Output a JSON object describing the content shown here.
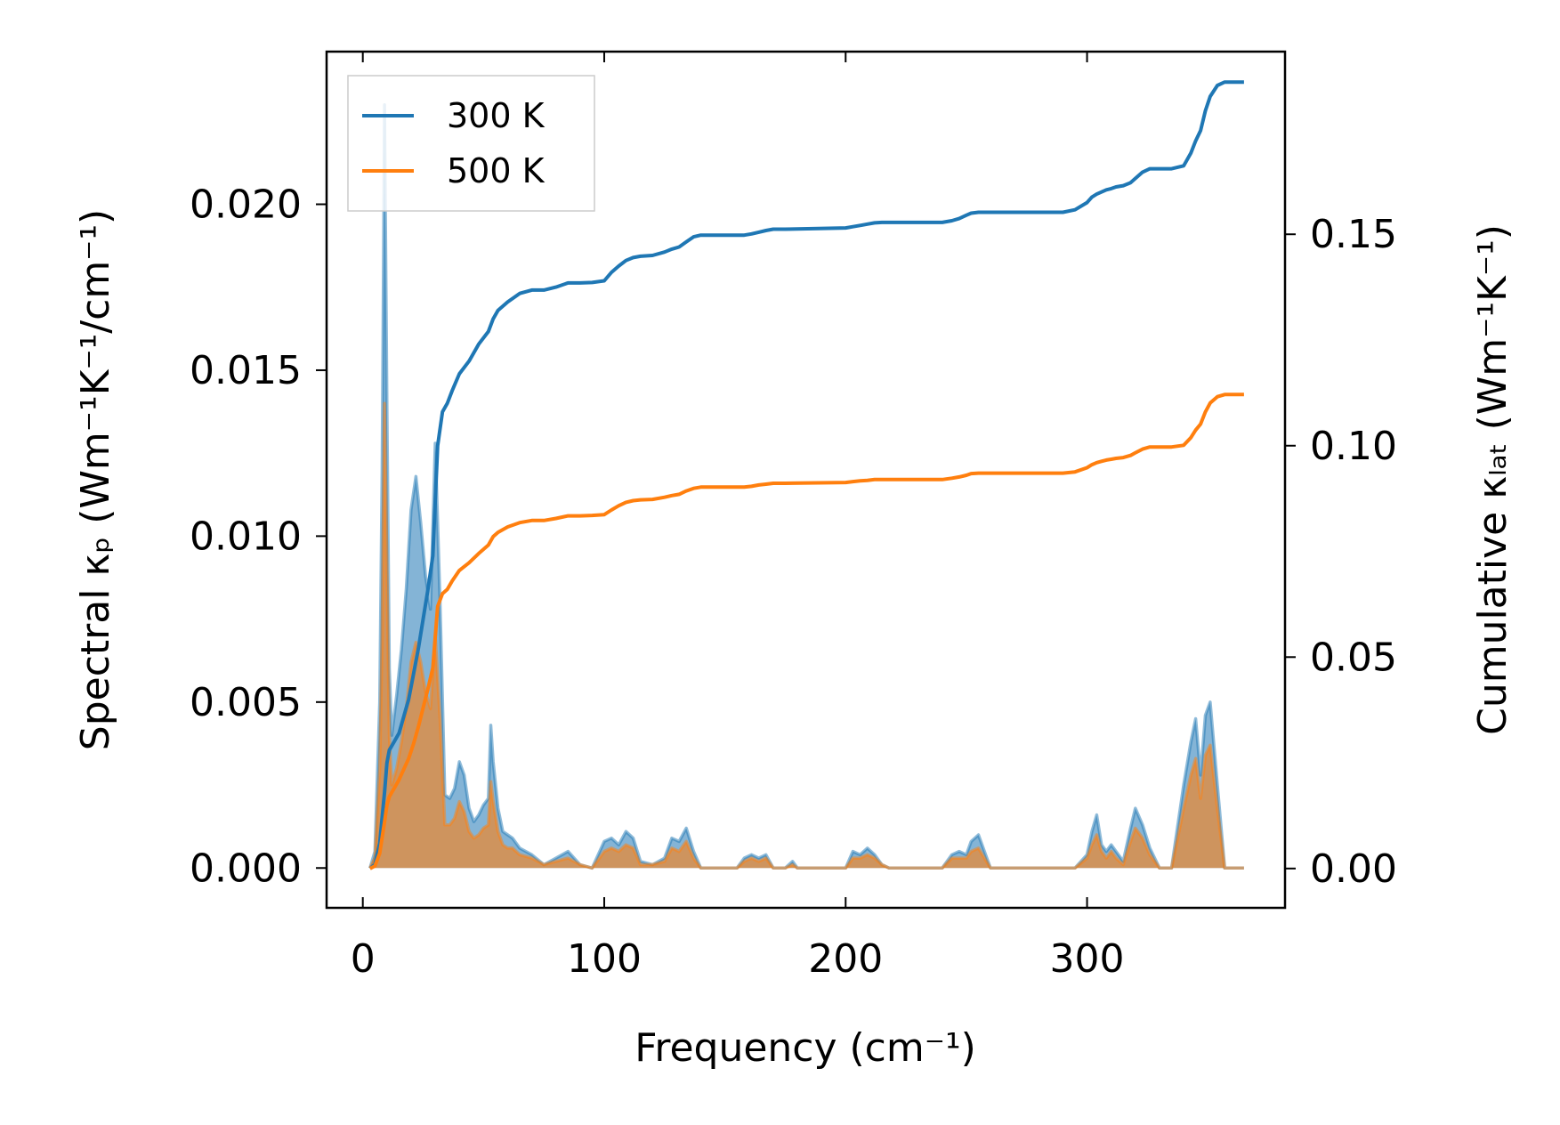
{
  "chart_data": {
    "type": "line",
    "xlabel": "Frequency (cm⁻¹)",
    "ylabel_left": "Spectral κₚ (Wm⁻¹K⁻¹/cm⁻¹)",
    "ylabel_right": "Cumulative κₗₐₜ (Wm⁻¹K⁻¹)",
    "xlim": [
      -15,
      382
    ],
    "ylim_left": [
      -0.0012,
      0.0246
    ],
    "ylim_right": [
      -0.0093,
      0.1932
    ],
    "xticks": [
      0,
      100,
      200,
      300
    ],
    "xtick_labels": [
      "0",
      "100",
      "200",
      "300"
    ],
    "yticks_left": [
      0.0,
      0.005,
      0.01,
      0.015,
      0.02
    ],
    "ytick_labels_left": [
      "0.000",
      "0.005",
      "0.010",
      "0.015",
      "0.020"
    ],
    "yticks_right": [
      0.0,
      0.05,
      0.1,
      0.15
    ],
    "ytick_labels_right": [
      "0.00",
      "0.05",
      "0.10",
      "0.15"
    ],
    "legend": {
      "placement": "top-left",
      "entries": [
        "300 K",
        "500 K"
      ]
    },
    "grid": false,
    "series": [
      {
        "name": "300 K",
        "color": "#1f77b4",
        "fill_color": "#1f77b4",
        "spectral_x": [
          3,
          5,
          7,
          8,
          9,
          10,
          11,
          12,
          14,
          16,
          18,
          20,
          22,
          24,
          26,
          28,
          30,
          32,
          34,
          36,
          38,
          40,
          42,
          44,
          46,
          48,
          50,
          52,
          53,
          54,
          56,
          58,
          60,
          62,
          65,
          70,
          75,
          80,
          85,
          90,
          95,
          100,
          103,
          106,
          109,
          112,
          115,
          120,
          125,
          128,
          131,
          134,
          137,
          140,
          150,
          155,
          158,
          161,
          164,
          167,
          170,
          175,
          178,
          180,
          185,
          200,
          203,
          206,
          209,
          212,
          215,
          218,
          220,
          240,
          244,
          247,
          250,
          252,
          255,
          260,
          290,
          295,
          300,
          302,
          304,
          306,
          308,
          310,
          312,
          315,
          318,
          320,
          323,
          326,
          330,
          335,
          340,
          343,
          345,
          347,
          349,
          351,
          354,
          357,
          365
        ],
        "spectral_y": [
          0,
          0.0005,
          0.005,
          0.012,
          0.023,
          0.014,
          0.006,
          0.004,
          0.0052,
          0.0066,
          0.0084,
          0.0108,
          0.0118,
          0.0104,
          0.0088,
          0.0078,
          0.0128,
          0.008,
          0.0022,
          0.0021,
          0.0024,
          0.0032,
          0.0028,
          0.0018,
          0.0014,
          0.0016,
          0.0019,
          0.0021,
          0.0043,
          0.0032,
          0.0018,
          0.0011,
          0.001,
          0.0009,
          0.0006,
          0.0004,
          0.0001,
          0.0003,
          0.0005,
          0.0001,
          0,
          0.0008,
          0.0009,
          0.0007,
          0.0011,
          0.0009,
          0.0002,
          0.0001,
          0.0003,
          0.0009,
          0.0008,
          0.0012,
          0.0005,
          0,
          0,
          0,
          0.0003,
          0.0004,
          0.0003,
          0.0004,
          0,
          0,
          0.0002,
          0,
          0,
          0,
          0.0005,
          0.0004,
          0.0006,
          0.0004,
          0.0001,
          0,
          0,
          0,
          0.0004,
          0.0005,
          0.0004,
          0.0008,
          0.001,
          0,
          0,
          0,
          0.0004,
          0.0011,
          0.0016,
          0.0007,
          0.0005,
          0.0007,
          0.0005,
          0.0002,
          0.0012,
          0.0018,
          0.0013,
          0.0006,
          0,
          0,
          0.0025,
          0.0038,
          0.0045,
          0.0028,
          0.0046,
          0.005,
          0.0025,
          0,
          0
        ],
        "cumulative_x": [
          3,
          5,
          7,
          9,
          10,
          11,
          13,
          15,
          17,
          19,
          21,
          23,
          25,
          27,
          29,
          31,
          33,
          35,
          37,
          40,
          44,
          48,
          52,
          54,
          56,
          60,
          65,
          70,
          75,
          80,
          85,
          90,
          95,
          100,
          103,
          106,
          109,
          112,
          115,
          120,
          125,
          128,
          131,
          134,
          137,
          140,
          150,
          158,
          161,
          164,
          167,
          170,
          175,
          200,
          203,
          206,
          209,
          212,
          215,
          220,
          240,
          244,
          247,
          250,
          252,
          255,
          260,
          290,
          295,
          300,
          302,
          304,
          306,
          308,
          310,
          312,
          315,
          318,
          320,
          323,
          326,
          330,
          335,
          340,
          343,
          345,
          347,
          349,
          351,
          354,
          357,
          365
        ],
        "cumulative_y": [
          0,
          0.001,
          0.006,
          0.018,
          0.025,
          0.028,
          0.03,
          0.032,
          0.036,
          0.04,
          0.046,
          0.052,
          0.059,
          0.066,
          0.074,
          0.1,
          0.108,
          0.11,
          0.113,
          0.117,
          0.12,
          0.124,
          0.127,
          0.13,
          0.132,
          0.134,
          0.136,
          0.1368,
          0.1368,
          0.1375,
          0.1385,
          0.1385,
          0.1386,
          0.139,
          0.141,
          0.1425,
          0.1438,
          0.1445,
          0.1448,
          0.145,
          0.1458,
          0.1465,
          0.147,
          0.1482,
          0.1494,
          0.1498,
          0.1498,
          0.1498,
          0.1501,
          0.1505,
          0.1509,
          0.1512,
          0.1512,
          0.1515,
          0.1518,
          0.1521,
          0.1524,
          0.1527,
          0.1528,
          0.1528,
          0.1528,
          0.1532,
          0.1537,
          0.1545,
          0.155,
          0.1552,
          0.1552,
          0.1552,
          0.1558,
          0.1575,
          0.1588,
          0.1595,
          0.16,
          0.1605,
          0.1608,
          0.1612,
          0.1615,
          0.1622,
          0.1632,
          0.1647,
          0.1655,
          0.1655,
          0.1655,
          0.1662,
          0.1692,
          0.1721,
          0.1745,
          0.1792,
          0.1826,
          0.1852,
          0.186,
          0.186
        ]
      },
      {
        "name": "500 K",
        "color": "#ff7f0e",
        "fill_color": "#ff7f0e",
        "spectral_x": [
          3,
          5,
          7,
          8,
          9,
          10,
          11,
          12,
          14,
          16,
          18,
          20,
          22,
          24,
          26,
          28,
          30,
          32,
          34,
          36,
          38,
          40,
          42,
          44,
          46,
          48,
          50,
          52,
          53,
          54,
          56,
          58,
          60,
          62,
          65,
          70,
          75,
          80,
          85,
          90,
          95,
          100,
          103,
          106,
          109,
          112,
          115,
          120,
          125,
          128,
          131,
          134,
          137,
          140,
          150,
          155,
          158,
          161,
          164,
          167,
          170,
          175,
          178,
          180,
          185,
          200,
          203,
          206,
          209,
          212,
          215,
          218,
          220,
          240,
          244,
          247,
          250,
          252,
          255,
          260,
          290,
          295,
          300,
          302,
          304,
          306,
          308,
          310,
          312,
          315,
          318,
          320,
          323,
          326,
          330,
          335,
          340,
          343,
          345,
          347,
          349,
          351,
          354,
          357,
          365
        ],
        "spectral_y": [
          0,
          0.0003,
          0.003,
          0.007,
          0.014,
          0.009,
          0.004,
          0.0025,
          0.003,
          0.0038,
          0.0048,
          0.0062,
          0.0068,
          0.0062,
          0.0053,
          0.0048,
          0.007,
          0.0045,
          0.0013,
          0.0013,
          0.0015,
          0.002,
          0.0017,
          0.0011,
          0.0009,
          0.001,
          0.0012,
          0.0013,
          0.0026,
          0.002,
          0.0011,
          0.0007,
          0.0006,
          0.0006,
          0.0004,
          0.0003,
          0.0001,
          0.0002,
          0.0003,
          0.0001,
          0,
          0.0005,
          0.0006,
          0.0005,
          0.0007,
          0.0006,
          0.0001,
          0.0001,
          0.0002,
          0.0006,
          0.0005,
          0.0008,
          0.0003,
          0,
          0,
          0,
          0.0002,
          0.0003,
          0.0002,
          0.0003,
          0,
          0,
          0.0001,
          0,
          0,
          0,
          0.0003,
          0.0003,
          0.0004,
          0.0003,
          0.0001,
          0,
          0,
          0,
          0.0003,
          0.0003,
          0.0003,
          0.0005,
          0.0006,
          0,
          0,
          0,
          0.0003,
          0.0007,
          0.001,
          0.0005,
          0.0003,
          0.0005,
          0.0003,
          0.0001,
          0.0008,
          0.0012,
          0.0009,
          0.0004,
          0,
          0,
          0.0018,
          0.0028,
          0.0033,
          0.0021,
          0.0034,
          0.0037,
          0.0018,
          0,
          0
        ],
        "cumulative_x": [
          3,
          5,
          7,
          9,
          10,
          11,
          13,
          15,
          17,
          19,
          21,
          23,
          25,
          27,
          29,
          31,
          33,
          35,
          37,
          40,
          44,
          48,
          52,
          54,
          56,
          60,
          65,
          70,
          75,
          80,
          85,
          90,
          95,
          100,
          103,
          106,
          109,
          112,
          115,
          120,
          125,
          128,
          131,
          134,
          137,
          140,
          150,
          158,
          161,
          164,
          167,
          170,
          175,
          200,
          203,
          206,
          209,
          212,
          215,
          220,
          240,
          244,
          247,
          250,
          252,
          255,
          260,
          290,
          295,
          300,
          302,
          304,
          306,
          308,
          310,
          312,
          315,
          318,
          320,
          323,
          326,
          330,
          335,
          340,
          343,
          345,
          347,
          349,
          351,
          354,
          357,
          365
        ],
        "cumulative_y": [
          0,
          0.0006,
          0.0036,
          0.011,
          0.015,
          0.017,
          0.019,
          0.021,
          0.0235,
          0.026,
          0.0295,
          0.0335,
          0.038,
          0.0425,
          0.0475,
          0.062,
          0.065,
          0.066,
          0.068,
          0.0705,
          0.0723,
          0.0745,
          0.0765,
          0.0785,
          0.0795,
          0.0808,
          0.0818,
          0.0823,
          0.0823,
          0.0828,
          0.0834,
          0.0834,
          0.0835,
          0.0837,
          0.0848,
          0.0858,
          0.0866,
          0.087,
          0.0872,
          0.0873,
          0.0878,
          0.0882,
          0.0885,
          0.0893,
          0.0899,
          0.0902,
          0.0902,
          0.0902,
          0.0904,
          0.0907,
          0.0909,
          0.0911,
          0.0911,
          0.0913,
          0.0915,
          0.0917,
          0.0918,
          0.092,
          0.092,
          0.092,
          0.092,
          0.0923,
          0.0926,
          0.093,
          0.0934,
          0.0935,
          0.0935,
          0.0935,
          0.0938,
          0.0948,
          0.0955,
          0.096,
          0.0963,
          0.0966,
          0.0968,
          0.097,
          0.0972,
          0.0977,
          0.0983,
          0.0992,
          0.0997,
          0.0997,
          0.0997,
          0.1001,
          0.1019,
          0.1037,
          0.1051,
          0.108,
          0.1101,
          0.1116,
          0.1121,
          0.1121
        ]
      }
    ]
  }
}
